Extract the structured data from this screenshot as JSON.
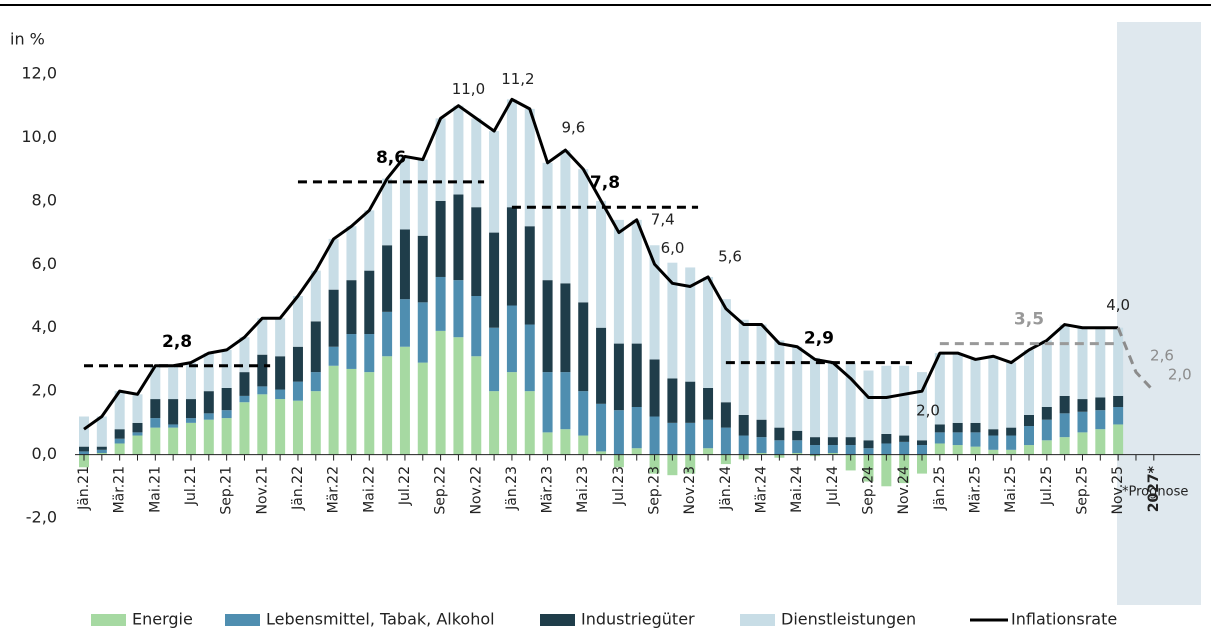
{
  "chart_data": {
    "type": "bar",
    "y_axis_label": "in %",
    "note": "*Prognose",
    "categories": [
      "Jän.21",
      null,
      "Mär.21",
      null,
      "Mai.21",
      null,
      "Jul.21",
      null,
      "Sep.21",
      null,
      "Nov.21",
      null,
      "Jän.22",
      null,
      "Mär.22",
      null,
      "Mai.22",
      null,
      "Jul.22",
      null,
      "Sep.22",
      null,
      "Nov.22",
      null,
      "Jän.23",
      null,
      "Mär.23",
      null,
      "Mai.23",
      null,
      "Jul.23",
      null,
      "Sep.23",
      null,
      "Nov.23",
      null,
      "Jän.24",
      null,
      "Mär.24",
      null,
      "Mai.24",
      null,
      "Jul.24",
      null,
      "Sep.24",
      null,
      "Nov.24",
      null,
      "Jän.25",
      null,
      "Mär.25",
      null,
      "Mai.25",
      null,
      "Jul.25",
      null,
      "Sep.25",
      null,
      "Nov.25",
      null,
      "2027*"
    ],
    "series": [
      {
        "name": "Energie",
        "color": "#a6d9a2",
        "values": [
          -0.4,
          0.05,
          0.35,
          0.6,
          0.85,
          0.85,
          1.0,
          1.1,
          1.15,
          1.65,
          1.9,
          1.75,
          1.7,
          2.0,
          2.8,
          2.7,
          2.6,
          3.1,
          3.4,
          2.9,
          3.9,
          3.7,
          3.1,
          2.0,
          2.6,
          2.0,
          0.7,
          0.8,
          0.6,
          0.1,
          -0.4,
          0.2,
          -0.6,
          -0.65,
          -0.6,
          0.2,
          -0.3,
          -0.15,
          0.05,
          -0.1,
          0.05,
          -0.05,
          0.05,
          -0.5,
          -0.85,
          -1.0,
          -0.9,
          -0.6,
          0.35,
          0.3,
          0.25,
          0.15,
          0.15,
          0.3,
          0.45,
          0.55,
          0.7,
          0.8,
          0.95,
          null,
          null
        ]
      },
      {
        "name": "Lebensmittel, Tabak, Alkohol",
        "color": "#4f8eb0",
        "values": [
          0.1,
          0.1,
          0.15,
          0.1,
          0.3,
          0.1,
          0.15,
          0.2,
          0.25,
          0.2,
          0.25,
          0.3,
          0.6,
          0.6,
          0.6,
          1.1,
          1.2,
          1.4,
          1.5,
          1.9,
          1.7,
          1.8,
          1.9,
          2.0,
          2.1,
          2.1,
          1.9,
          1.8,
          1.4,
          1.5,
          1.4,
          1.3,
          1.2,
          1.0,
          1.0,
          0.9,
          0.85,
          0.6,
          0.5,
          0.45,
          0.4,
          0.3,
          0.25,
          0.3,
          0.2,
          0.35,
          0.4,
          0.3,
          0.35,
          0.4,
          0.45,
          0.45,
          0.45,
          0.6,
          0.65,
          0.75,
          0.65,
          0.6,
          0.55,
          null,
          null
        ]
      },
      {
        "name": "Industriegüter",
        "color": "#1f3d4a",
        "values": [
          0.15,
          0.1,
          0.3,
          0.3,
          0.6,
          0.8,
          0.6,
          0.7,
          0.7,
          0.75,
          1.0,
          1.05,
          1.1,
          1.6,
          1.8,
          1.7,
          2.0,
          2.1,
          2.2,
          2.1,
          2.4,
          2.7,
          2.8,
          3.0,
          3.1,
          3.1,
          2.9,
          2.8,
          2.8,
          2.4,
          2.1,
          2.0,
          1.8,
          1.4,
          1.3,
          1.0,
          0.8,
          0.65,
          0.55,
          0.4,
          0.3,
          0.25,
          0.25,
          0.25,
          0.25,
          0.3,
          0.2,
          0.15,
          0.25,
          0.3,
          0.3,
          0.2,
          0.25,
          0.35,
          0.4,
          0.55,
          0.4,
          0.4,
          0.35,
          null,
          null
        ]
      },
      {
        "name": "Dienstleistungen",
        "color": "#c8dde6",
        "values": [
          0.95,
          0.95,
          1.2,
          0.9,
          1.05,
          1.05,
          1.15,
          1.2,
          1.2,
          1.1,
          1.15,
          1.2,
          1.6,
          1.6,
          1.6,
          1.7,
          1.9,
          2.1,
          2.3,
          2.4,
          2.6,
          2.8,
          2.8,
          3.2,
          3.4,
          3.7,
          3.7,
          4.2,
          4.2,
          4.0,
          3.9,
          3.9,
          3.6,
          3.65,
          3.6,
          3.5,
          3.25,
          3.0,
          3.0,
          2.75,
          2.65,
          2.5,
          2.35,
          2.35,
          2.2,
          2.15,
          2.2,
          2.15,
          2.25,
          2.2,
          2.0,
          2.3,
          2.05,
          2.05,
          2.1,
          2.25,
          2.25,
          2.2,
          2.15,
          null,
          null
        ]
      },
      {
        "name": "Inflationsrate",
        "type": "line",
        "color": "#000000",
        "values": [
          0.8,
          1.2,
          2.0,
          1.9,
          2.8,
          2.8,
          2.9,
          3.2,
          3.3,
          3.7,
          4.3,
          4.3,
          5.0,
          5.8,
          6.8,
          7.2,
          7.7,
          8.7,
          9.4,
          9.3,
          10.6,
          11.0,
          10.6,
          10.2,
          11.2,
          10.9,
          9.2,
          9.6,
          9.0,
          8.0,
          7.0,
          7.4,
          6.0,
          5.4,
          5.3,
          5.6,
          4.6,
          4.1,
          4.1,
          3.5,
          3.4,
          3.0,
          2.9,
          2.4,
          1.8,
          1.8,
          1.9,
          2.0,
          3.2,
          3.2,
          3.0,
          3.1,
          2.9,
          3.3,
          3.6,
          4.1,
          4.0,
          4.0,
          4.0,
          null,
          null
        ],
        "value_labels": [
          null,
          null,
          null,
          null,
          null,
          null,
          null,
          null,
          null,
          null,
          null,
          null,
          null,
          null,
          null,
          null,
          null,
          null,
          null,
          null,
          null,
          "11,0",
          null,
          null,
          "11,2",
          null,
          null,
          "9,6",
          null,
          null,
          null,
          "7,4",
          "6,0",
          null,
          null,
          "5,6",
          null,
          null,
          null,
          null,
          null,
          null,
          null,
          null,
          null,
          null,
          null,
          "2,0",
          null,
          null,
          null,
          null,
          null,
          null,
          null,
          null,
          null,
          null,
          "4,0",
          null,
          null
        ]
      }
    ],
    "forecast": {
      "color": "#8c8c8c",
      "values": [
        null,
        null,
        null,
        null,
        null,
        null,
        null,
        null,
        null,
        null,
        null,
        null,
        null,
        null,
        null,
        null,
        null,
        null,
        null,
        null,
        null,
        null,
        null,
        null,
        null,
        null,
        null,
        null,
        null,
        null,
        null,
        null,
        null,
        null,
        null,
        null,
        null,
        null,
        null,
        null,
        null,
        null,
        null,
        null,
        null,
        null,
        null,
        null,
        null,
        null,
        null,
        null,
        null,
        null,
        null,
        null,
        null,
        null,
        4.0,
        2.6,
        2.0
      ],
      "value_labels": [
        null,
        null,
        null,
        null,
        null,
        null,
        null,
        null,
        null,
        null,
        null,
        null,
        null,
        null,
        null,
        null,
        null,
        null,
        null,
        null,
        null,
        null,
        null,
        null,
        null,
        null,
        null,
        null,
        null,
        null,
        null,
        null,
        null,
        null,
        null,
        null,
        null,
        null,
        null,
        null,
        null,
        null,
        null,
        null,
        null,
        null,
        null,
        null,
        null,
        null,
        null,
        null,
        null,
        null,
        null,
        null,
        null,
        null,
        null,
        "2,6",
        "2,0"
      ]
    },
    "annual_averages": {
      "values": [
        2.8,
        8.6,
        7.8,
        2.9,
        3.5
      ],
      "value_labels": [
        "2,8",
        "8,6",
        "7,8",
        "2,9",
        "3,5"
      ],
      "colors": [
        "#000000",
        "#000000",
        "#000000",
        "#000000",
        "#999999"
      ]
    },
    "ylim": [
      -2,
      12
    ],
    "yticks": [
      {
        "value": -2,
        "label": "-2,0"
      },
      {
        "value": 0,
        "label": "0,0"
      },
      {
        "value": 2,
        "label": "2,0"
      },
      {
        "value": 4,
        "label": "4,0"
      },
      {
        "value": 6,
        "label": "6,0"
      },
      {
        "value": 8,
        "label": "8,0"
      },
      {
        "value": 10,
        "label": "10,0"
      },
      {
        "value": 12,
        "label": "12,0"
      }
    ],
    "grid": false
  }
}
